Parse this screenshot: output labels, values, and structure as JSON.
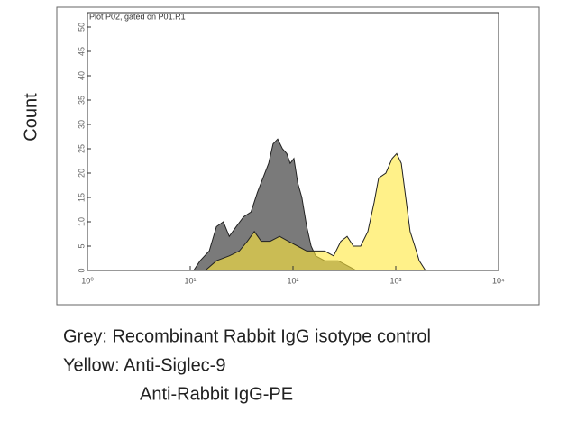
{
  "chart_data": {
    "type": "area",
    "title": "Plot P02, gated on P01.R1",
    "y_label": "Count",
    "log_x": true,
    "xlim": [
      1,
      10000
    ],
    "xticks": [
      {
        "value": 1,
        "label": "10⁰"
      },
      {
        "value": 10,
        "label": "10¹"
      },
      {
        "value": 100,
        "label": "10²"
      },
      {
        "value": 1000,
        "label": "10³"
      },
      {
        "value": 10000,
        "label": "10⁴"
      }
    ],
    "ylim": [
      0,
      50
    ],
    "yticks": [
      0,
      5,
      10,
      15,
      20,
      25,
      30,
      35,
      40,
      45,
      50
    ],
    "series": [
      {
        "color": "#7a7a7a",
        "x": [
          10.8,
          12.5,
          15.3,
          18,
          21,
          24,
          28,
          33,
          39,
          45,
          51,
          58,
          64,
          71,
          79,
          87,
          94,
          102,
          111,
          122,
          136,
          150,
          166,
          203,
          275,
          336,
          411
        ],
        "values": [
          0,
          2,
          4,
          9,
          10,
          7,
          9,
          11,
          12,
          16,
          19,
          22,
          26,
          27,
          25,
          24,
          22,
          23,
          18,
          15,
          9,
          5,
          3,
          2,
          2,
          1,
          0
        ]
      },
      {
        "color": "#ffe83a",
        "x": [
          14,
          18,
          24,
          30,
          36,
          42,
          49,
          60,
          74,
          90,
          111,
          136,
          203,
          248,
          292,
          336,
          387,
          455,
          535,
          616,
          681,
          801,
          923,
          1021,
          1130,
          1250,
          1380,
          1530,
          1690,
          1945
        ],
        "values": [
          0,
          2,
          3,
          4,
          6,
          8,
          6,
          6,
          7,
          6,
          5,
          4,
          4,
          3,
          6,
          7,
          5,
          5,
          8,
          14,
          19,
          20,
          23,
          24,
          22,
          15,
          8,
          5,
          2,
          0
        ]
      }
    ],
    "caption": [
      "Grey: Recombinant Rabbit IgG isotype control",
      "Yellow: Anti-Siglec-9",
      "Anti-Rabbit IgG-PE"
    ]
  }
}
